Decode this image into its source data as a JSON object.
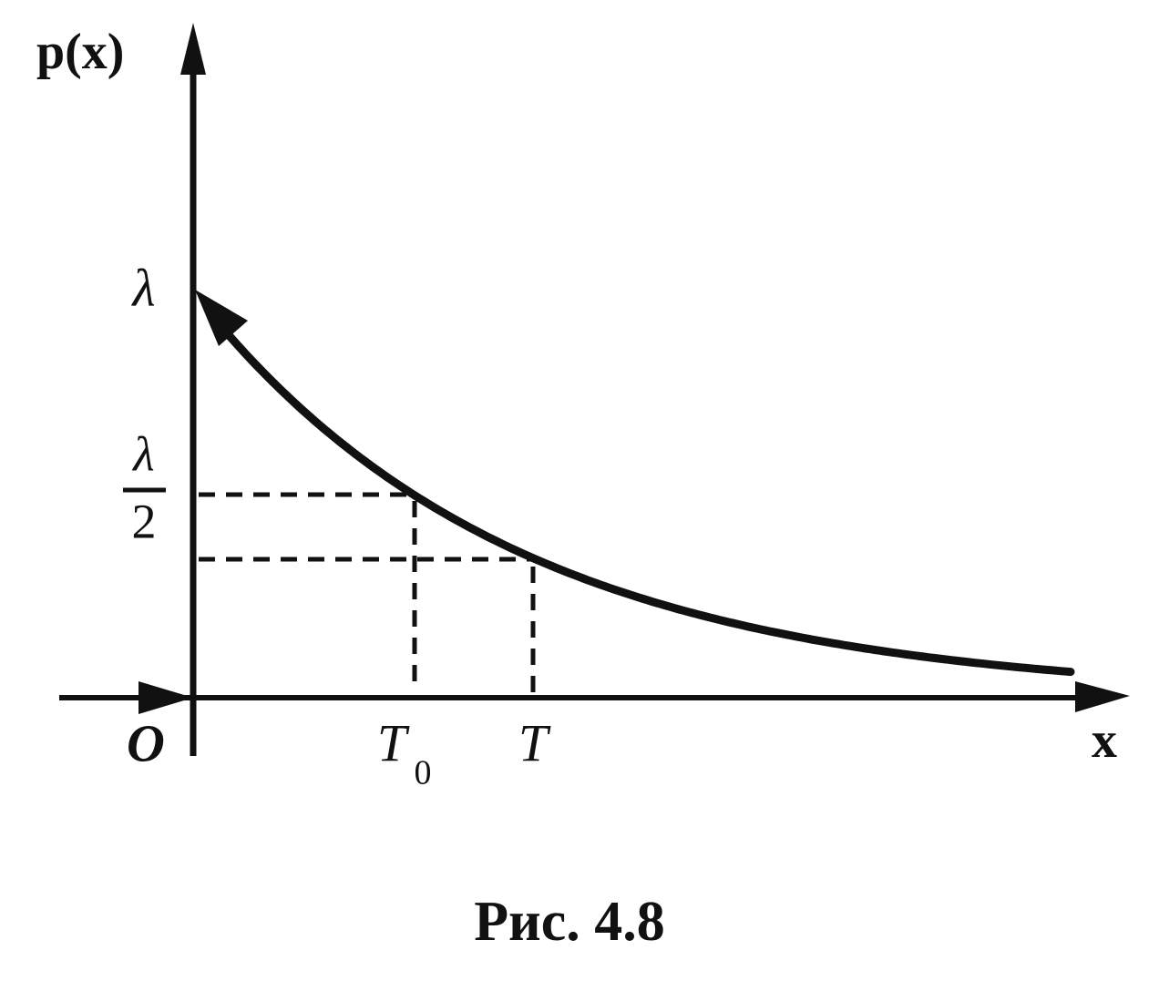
{
  "axes": {
    "y_label": "p(x)",
    "x_label": "x",
    "origin": "O"
  },
  "y_labels": {
    "lambda": "λ",
    "half_numerator": "λ",
    "half_denominator": "2"
  },
  "x_labels": {
    "t0": "T",
    "t0_subscript": "0",
    "t": "T"
  },
  "caption": "Рис. 4.8"
}
